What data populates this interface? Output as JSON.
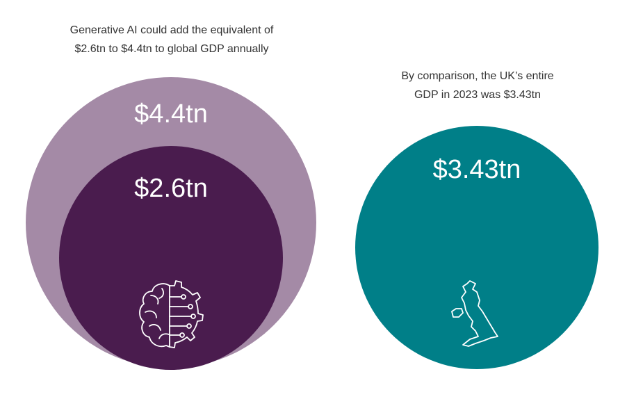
{
  "colors": {
    "outer_ai": "#a48aa6",
    "inner_ai": "#4a1c4e",
    "uk": "#007f88",
    "label": "#ffffff",
    "caption": "#333333"
  },
  "captions": {
    "left": [
      "Generative AI could add the equivalent of",
      "$2.6tn to $4.4tn to global GDP annually"
    ],
    "right": [
      "By comparison, the UK’s entire",
      "GDP in 2023 was $3.43tn"
    ]
  },
  "icons": {
    "ai": "brain-gear-circuit-icon",
    "uk": "uk-map-outline-icon"
  },
  "chart_data": {
    "type": "bubble",
    "unit": "$tn",
    "series": [
      {
        "name": "Generative AI upper estimate",
        "value": 4.4,
        "label": "$4.4tn",
        "color": "#a48aa6"
      },
      {
        "name": "Generative AI lower estimate",
        "value": 2.6,
        "label": "$2.6tn",
        "color": "#4a1c4e"
      },
      {
        "name": "UK GDP 2023",
        "value": 3.43,
        "label": "$3.43tn",
        "color": "#007f88"
      }
    ]
  }
}
